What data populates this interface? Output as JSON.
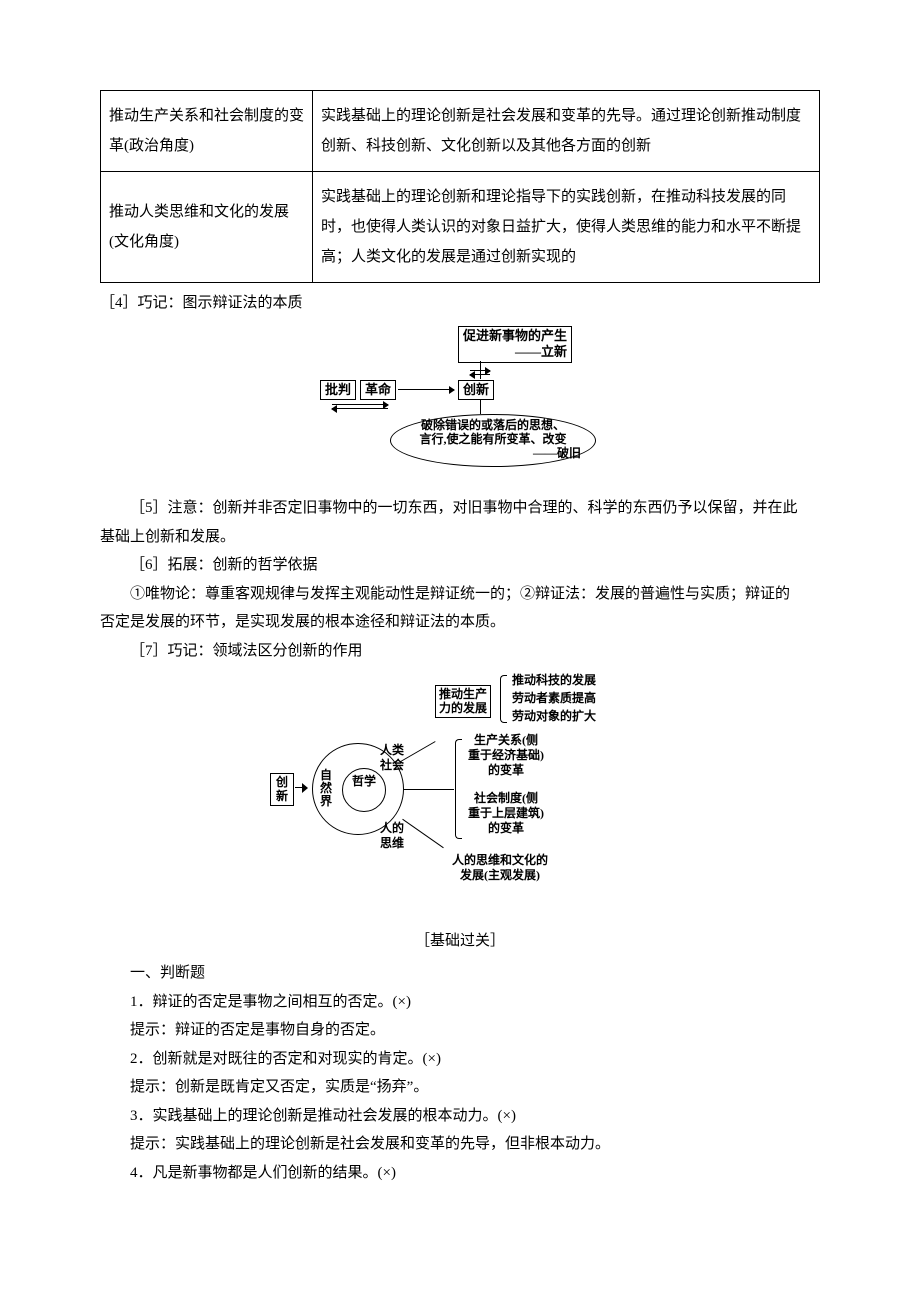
{
  "table": {
    "rows": [
      {
        "left": "推动生产关系和社会制度的变革(政治角度)",
        "right": "实践基础上的理论创新是社会发展和变革的先导。通过理论创新推动制度创新、科技创新、文化创新以及其他各方面的创新"
      },
      {
        "left": "推动人类思维和文化的发展(文化角度)",
        "right": "实践基础上的理论创新和理论指导下的实践创新，在推动科技发展的同时，也使得人类认识的对象日益扩大，使得人类思维的能力和水平不断提高；人类文化的发展是通过创新实现的"
      }
    ]
  },
  "notes": {
    "n4": "［4］巧记：图示辩证法的本质",
    "n5_a": "［5］注意：创新并非否定旧事物中的一切东西，对旧事物中合理的、科学的东西仍予以保留，并在此",
    "n5_b": "基础上创新和发展。",
    "n6_a": "［6］拓展：创新的哲学依据",
    "n6_b": "①唯物论：尊重客观规律与发挥主观能动性是辩证统一的；②辩证法：发展的普遍性与实质；辩证的",
    "n6_c": "否定是发展的环节，是实现发展的根本途径和辩证法的本质。",
    "n7": "［7］巧记：领域法区分创新的作用"
  },
  "diag1": {
    "top_box": "促进新事物的产生",
    "top_tag": "——立新",
    "left1": "批判",
    "left2": "革命",
    "center": "创新",
    "ellipse_l1": "破除错误的或落后的思想、",
    "ellipse_l2": "言行,使之能有所变革、改变",
    "ellipse_tag": "——破旧"
  },
  "diag2": {
    "left_box": "创\n新",
    "circle_outer": "自\n然\n界",
    "circle_mid": "哲学",
    "top_label": "人类\n社会",
    "bottom_label": "人的\n思维",
    "branch1_box": "推动生产\n力的发展",
    "branch1_items": [
      "推动科技的发展",
      "劳动者素质提高",
      "劳动对象的扩大"
    ],
    "branch2_items": [
      "生产关系(侧\n重于经济基础)\n的变革",
      "社会制度(侧\n重于上层建筑)\n的变革"
    ],
    "branch3": "人的思维和文化的\n发展(主观发展)"
  },
  "footer": {
    "section": "［基础过关］",
    "h1": "一、判断题",
    "q1": "1．辩证的否定是事物之间相互的否定。(×)",
    "a1": "提示：辩证的否定是事物自身的否定。",
    "q2": "2．创新就是对既往的否定和对现实的肯定。(×)",
    "a2": "提示：创新是既肯定又否定，实质是“扬弃”。",
    "q3": "3．实践基础上的理论创新是推动社会发展的根本动力。(×)",
    "a3": "提示：实践基础上的理论创新是社会发展和变革的先导，但非根本动力。",
    "q4": "4．凡是新事物都是人们创新的结果。(×)"
  }
}
